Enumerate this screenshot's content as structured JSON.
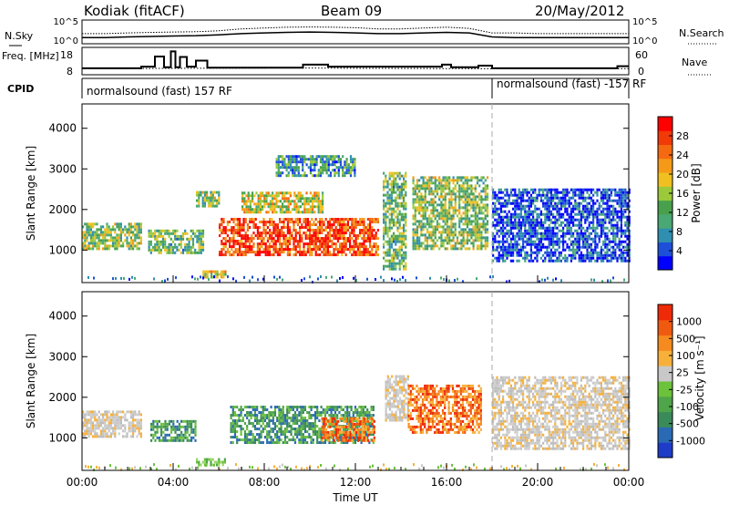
{
  "header": {
    "station": "Kodiak (fitACF)",
    "beam": "Beam 09",
    "date": "20/May/2012"
  },
  "chart_data": [
    {
      "type": "line",
      "panel": "noise",
      "left_label": "N.Sky",
      "right_label": "N.Search",
      "left_ticks": [
        "10^5",
        "10^0"
      ],
      "right_ticks": [
        "10^5",
        "10^0"
      ],
      "y_scale": "log",
      "x": [
        0,
        1,
        2,
        3,
        4,
        5,
        6,
        7,
        8,
        9,
        10,
        11,
        12,
        13,
        14,
        15,
        16,
        17,
        18,
        19,
        20,
        21,
        22,
        23,
        24
      ],
      "series": [
        {
          "name": "N.Sky",
          "values": [
            20,
            20,
            30,
            40,
            50,
            60,
            100,
            200,
            300,
            400,
            500,
            400,
            300,
            200,
            200,
            300,
            400,
            300,
            30,
            20,
            20,
            20,
            20,
            20,
            20
          ]
        },
        {
          "name": "N.Search",
          "values": [
            200,
            200,
            300,
            400,
            500,
            600,
            1000,
            3000,
            5000,
            8000,
            9000,
            8000,
            6000,
            3000,
            3000,
            5000,
            8000,
            4000,
            300,
            300,
            200,
            200,
            200,
            200,
            200
          ]
        }
      ]
    },
    {
      "type": "line",
      "panel": "frequency",
      "left_label": "Freq. [MHz]",
      "right_label": "Nave",
      "left_ticks": [
        "18",
        "8"
      ],
      "right_ticks": [
        "60",
        "0"
      ],
      "ylim_freq": [
        8,
        18
      ],
      "ylim_nave": [
        0,
        60
      ],
      "freq_steps": [
        {
          "t": 0.0,
          "v": 10.2
        },
        {
          "t": 2.6,
          "v": 10.8
        },
        {
          "t": 3.2,
          "v": 14.8
        },
        {
          "t": 3.6,
          "v": 10.6
        },
        {
          "t": 3.9,
          "v": 16.8
        },
        {
          "t": 4.1,
          "v": 10.6
        },
        {
          "t": 4.3,
          "v": 14.6
        },
        {
          "t": 4.6,
          "v": 10.8
        },
        {
          "t": 5.0,
          "v": 13.2
        },
        {
          "t": 5.5,
          "v": 10.4
        },
        {
          "t": 9.7,
          "v": 11.6
        },
        {
          "t": 10.8,
          "v": 10.8
        },
        {
          "t": 15.8,
          "v": 11.6
        },
        {
          "t": 16.2,
          "v": 10.6
        },
        {
          "t": 17.4,
          "v": 11.2
        },
        {
          "t": 18.0,
          "v": 10.2
        },
        {
          "t": 23.5,
          "v": 11.0
        },
        {
          "t": 24.0,
          "v": 11.0
        }
      ],
      "nave_dotted": [
        {
          "t": 0.0,
          "v": 12
        },
        {
          "t": 9.0,
          "v": 14
        },
        {
          "t": 12.0,
          "v": 13
        },
        {
          "t": 18.0,
          "v": 12
        },
        {
          "t": 24.0,
          "v": 12
        }
      ]
    },
    {
      "type": "table",
      "panel": "cpid",
      "label": "CPID",
      "segments": [
        {
          "start": 0,
          "end": 18,
          "text": "normalsound (fast) 157 RF"
        },
        {
          "start": 18,
          "end": 24,
          "text": "normalsound (fast) -157 RF"
        }
      ]
    },
    {
      "type": "heatmap",
      "panel": "power",
      "ylabel": "Slant Range [km]",
      "yticks": [
        1000,
        2000,
        3000,
        4000
      ],
      "ylim": [
        200,
        4600
      ],
      "xlim": [
        0,
        24
      ],
      "colorbar_label": "Power [dB]",
      "colorbar_ticks": [
        "28",
        "24",
        "20",
        "16",
        "12",
        "8",
        "4"
      ],
      "colorbar_colors": [
        "#0000ff",
        "#1e4fd8",
        "#2f8fb0",
        "#4aa874",
        "#48a04c",
        "#9bc93a",
        "#f0c020",
        "#f59a18",
        "#f56a10",
        "#f03a08",
        "#ff0000"
      ],
      "regions": [
        {
          "t0": 0.0,
          "t1": 2.6,
          "r0": 1000,
          "r1": 1650,
          "level": 0.45
        },
        {
          "t0": 2.9,
          "t1": 5.3,
          "r0": 900,
          "r1": 1500,
          "level": 0.4
        },
        {
          "t0": 5.2,
          "t1": 6.3,
          "r0": 300,
          "r1": 500,
          "level": 0.55
        },
        {
          "t0": 5.0,
          "t1": 6.0,
          "r0": 2050,
          "r1": 2450,
          "level": 0.45
        },
        {
          "t0": 6.0,
          "t1": 13.0,
          "r0": 850,
          "r1": 1750,
          "level": 0.85
        },
        {
          "t0": 7.0,
          "t1": 10.6,
          "r0": 1900,
          "r1": 2400,
          "level": 0.55
        },
        {
          "t0": 8.5,
          "t1": 12.0,
          "r0": 2800,
          "r1": 3300,
          "level": 0.3
        },
        {
          "t0": 13.2,
          "t1": 14.2,
          "r0": 500,
          "r1": 2900,
          "level": 0.4
        },
        {
          "t0": 14.5,
          "t1": 17.8,
          "r0": 1000,
          "r1": 2800,
          "level": 0.45
        },
        {
          "t0": 18.0,
          "t1": 24.0,
          "r0": 700,
          "r1": 2500,
          "level": 0.12
        }
      ]
    },
    {
      "type": "heatmap",
      "panel": "velocity",
      "ylabel": "Slant Range [km]",
      "yticks": [
        1000,
        2000,
        3000,
        4000
      ],
      "ylim": [
        200,
        4600
      ],
      "xlim": [
        0,
        24
      ],
      "xlabel": "Time UT",
      "xticks": [
        "00:00",
        "04:00",
        "08:00",
        "12:00",
        "16:00",
        "20:00",
        "00:00"
      ],
      "colorbar_label": "Velocity [m s⁻¹]",
      "colorbar_ticks": [
        "1000",
        "500",
        "100",
        "25",
        "-25",
        "-100",
        "-500",
        "-1000"
      ],
      "colorbar_colors": [
        "#1e3cc8",
        "#2a6ab4",
        "#3b8a5a",
        "#4fa54a",
        "#6cc23a",
        "#c8c8c8",
        "#f7b13a",
        "#f58a1e",
        "#f05a10",
        "#ee2a08"
      ],
      "regions": [
        {
          "t0": 0.0,
          "t1": 2.6,
          "r0": 1000,
          "r1": 1650,
          "class": "grey"
        },
        {
          "t0": 3.0,
          "t1": 5.0,
          "r0": 900,
          "r1": 1400,
          "class": "green"
        },
        {
          "t0": 5.0,
          "t1": 6.3,
          "r0": 300,
          "r1": 500,
          "class": "lightgreen"
        },
        {
          "t0": 6.5,
          "t1": 12.8,
          "r0": 850,
          "r1": 1750,
          "class": "green"
        },
        {
          "t0": 10.5,
          "t1": 12.8,
          "r0": 900,
          "r1": 1500,
          "class": "orange"
        },
        {
          "t0": 13.3,
          "t1": 14.3,
          "r0": 1400,
          "r1": 2500,
          "class": "grey"
        },
        {
          "t0": 14.3,
          "t1": 17.5,
          "r0": 1100,
          "r1": 2300,
          "class": "orange"
        },
        {
          "t0": 18.0,
          "t1": 24.0,
          "r0": 700,
          "r1": 2500,
          "class": "grey"
        }
      ]
    }
  ]
}
